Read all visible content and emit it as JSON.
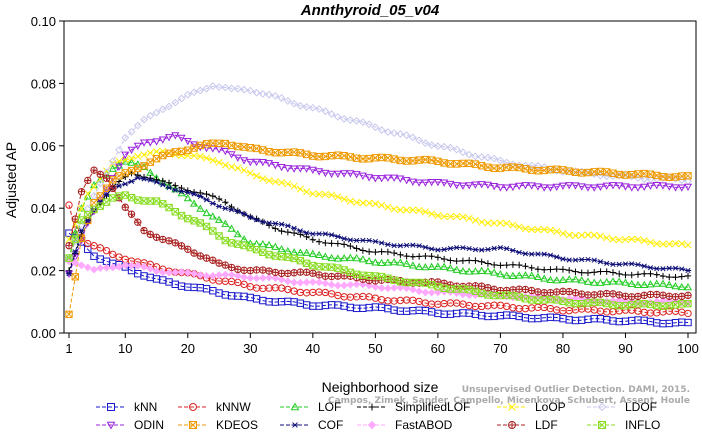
{
  "chart_data": {
    "type": "line",
    "title": "Annthyroid_05_v04",
    "xlabel": "Neighborhood size",
    "ylabel": "Adjusted AP",
    "xlim": [
      1,
      100
    ],
    "ylim": [
      0.0,
      0.1
    ],
    "xticks": [
      "1",
      "10",
      "20",
      "30",
      "40",
      "50",
      "60",
      "70",
      "80",
      "90",
      "100"
    ],
    "yticks": [
      "0.00",
      "0.02",
      "0.04",
      "0.06",
      "0.08",
      "0.10"
    ],
    "watermark": [
      "Unsupervised Outlier Detection. DAMI, 2015.",
      "Campos, Zimek, Sander, Campello, Micenkova, Schubert, Assent, Houle"
    ],
    "legend_position": "bottom",
    "series": [
      {
        "name": "kNN",
        "color": "#1a1acc",
        "marker": "square",
        "points": [
          [
            1,
            0.032
          ],
          [
            3,
            0.029
          ],
          [
            5,
            0.025
          ],
          [
            8,
            0.022
          ],
          [
            10,
            0.021
          ],
          [
            15,
            0.017
          ],
          [
            20,
            0.015
          ],
          [
            25,
            0.013
          ],
          [
            30,
            0.011
          ],
          [
            40,
            0.009
          ],
          [
            50,
            0.008
          ],
          [
            60,
            0.0065
          ],
          [
            70,
            0.0055
          ],
          [
            80,
            0.0045
          ],
          [
            90,
            0.004
          ],
          [
            100,
            0.003
          ]
        ]
      },
      {
        "name": "kNNW",
        "color": "#dd2222",
        "marker": "circle",
        "points": [
          [
            1,
            0.041
          ],
          [
            2,
            0.033
          ],
          [
            4,
            0.029
          ],
          [
            6,
            0.027
          ],
          [
            8,
            0.025
          ],
          [
            10,
            0.024
          ],
          [
            15,
            0.021
          ],
          [
            20,
            0.019
          ],
          [
            25,
            0.017
          ],
          [
            30,
            0.015
          ],
          [
            40,
            0.013
          ],
          [
            50,
            0.011
          ],
          [
            60,
            0.0095
          ],
          [
            70,
            0.0085
          ],
          [
            80,
            0.0075
          ],
          [
            90,
            0.007
          ],
          [
            100,
            0.0065
          ]
        ]
      },
      {
        "name": "LOF",
        "color": "#22cc22",
        "marker": "triangle-up",
        "points": [
          [
            1,
            0.024
          ],
          [
            3,
            0.04
          ],
          [
            5,
            0.047
          ],
          [
            8,
            0.053
          ],
          [
            10,
            0.055
          ],
          [
            13,
            0.053
          ],
          [
            15,
            0.05
          ],
          [
            20,
            0.043
          ],
          [
            25,
            0.036
          ],
          [
            30,
            0.029
          ],
          [
            40,
            0.025
          ],
          [
            50,
            0.023
          ],
          [
            60,
            0.021
          ],
          [
            70,
            0.019
          ],
          [
            80,
            0.017
          ],
          [
            90,
            0.016
          ],
          [
            100,
            0.015
          ]
        ]
      },
      {
        "name": "SimplifiedLOF",
        "color": "#000000",
        "marker": "plus",
        "points": [
          [
            1,
            0.02
          ],
          [
            3,
            0.031
          ],
          [
            5,
            0.039
          ],
          [
            8,
            0.047
          ],
          [
            11,
            0.051
          ],
          [
            14,
            0.05
          ],
          [
            18,
            0.047
          ],
          [
            22,
            0.045
          ],
          [
            26,
            0.042
          ],
          [
            30,
            0.037
          ],
          [
            35,
            0.033
          ],
          [
            40,
            0.03
          ],
          [
            50,
            0.026
          ],
          [
            60,
            0.024
          ],
          [
            70,
            0.022
          ],
          [
            80,
            0.02
          ],
          [
            90,
            0.019
          ],
          [
            100,
            0.018
          ]
        ]
      },
      {
        "name": "LoOP",
        "color": "#ffee00",
        "marker": "x",
        "points": [
          [
            1,
            0.03
          ],
          [
            4,
            0.045
          ],
          [
            8,
            0.054
          ],
          [
            12,
            0.057
          ],
          [
            16,
            0.058
          ],
          [
            20,
            0.057
          ],
          [
            25,
            0.055
          ],
          [
            30,
            0.051
          ],
          [
            40,
            0.045
          ],
          [
            50,
            0.041
          ],
          [
            60,
            0.038
          ],
          [
            70,
            0.035
          ],
          [
            80,
            0.032
          ],
          [
            90,
            0.03
          ],
          [
            100,
            0.028
          ]
        ]
      },
      {
        "name": "LDOF",
        "color": "#c8c8ee",
        "marker": "diamond",
        "points": [
          [
            1,
            0.024
          ],
          [
            4,
            0.04
          ],
          [
            8,
            0.055
          ],
          [
            10,
            0.063
          ],
          [
            13,
            0.068
          ],
          [
            16,
            0.072
          ],
          [
            20,
            0.076
          ],
          [
            24,
            0.0795
          ],
          [
            27,
            0.078
          ],
          [
            30,
            0.078
          ],
          [
            35,
            0.075
          ],
          [
            40,
            0.072
          ],
          [
            50,
            0.066
          ],
          [
            60,
            0.06
          ],
          [
            70,
            0.055
          ],
          [
            80,
            0.052
          ],
          [
            90,
            0.05
          ],
          [
            100,
            0.049
          ]
        ]
      },
      {
        "name": "ODIN",
        "color": "#9922dd",
        "marker": "triangle-down",
        "points": [
          [
            1,
            0.019
          ],
          [
            4,
            0.035
          ],
          [
            8,
            0.05
          ],
          [
            10,
            0.057
          ],
          [
            13,
            0.061
          ],
          [
            18,
            0.063
          ],
          [
            22,
            0.06
          ],
          [
            26,
            0.058
          ],
          [
            30,
            0.055
          ],
          [
            40,
            0.052
          ],
          [
            50,
            0.05
          ],
          [
            60,
            0.048
          ],
          [
            70,
            0.047
          ],
          [
            80,
            0.047
          ],
          [
            90,
            0.047
          ],
          [
            100,
            0.047
          ]
        ]
      },
      {
        "name": "KDEOS",
        "color": "#ee9900",
        "marker": "boxtimes",
        "points": [
          [
            1,
            0.006
          ],
          [
            3,
            0.03
          ],
          [
            5,
            0.042
          ],
          [
            8,
            0.049
          ],
          [
            11,
            0.052
          ],
          [
            14,
            0.055
          ],
          [
            18,
            0.058
          ],
          [
            22,
            0.06
          ],
          [
            26,
            0.061
          ],
          [
            30,
            0.059
          ],
          [
            40,
            0.057
          ],
          [
            50,
            0.056
          ],
          [
            60,
            0.055
          ],
          [
            70,
            0.053
          ],
          [
            80,
            0.052
          ],
          [
            90,
            0.051
          ],
          [
            100,
            0.05
          ]
        ]
      },
      {
        "name": "COF",
        "color": "#0d0d77",
        "marker": "asterisk",
        "points": [
          [
            1,
            0.019
          ],
          [
            3,
            0.033
          ],
          [
            5,
            0.04
          ],
          [
            8,
            0.046
          ],
          [
            10,
            0.048
          ],
          [
            12,
            0.05
          ],
          [
            15,
            0.048
          ],
          [
            20,
            0.045
          ],
          [
            25,
            0.041
          ],
          [
            30,
            0.037
          ],
          [
            40,
            0.032
          ],
          [
            50,
            0.029
          ],
          [
            60,
            0.027
          ],
          [
            70,
            0.027
          ],
          [
            80,
            0.024
          ],
          [
            90,
            0.022
          ],
          [
            100,
            0.02
          ]
        ]
      },
      {
        "name": "FastABOD",
        "color": "#ffaaff",
        "marker": "diamond-filled",
        "points": [
          [
            1,
            0.023
          ],
          [
            3,
            0.022
          ],
          [
            5,
            0.02
          ],
          [
            10,
            0.022
          ],
          [
            15,
            0.02
          ],
          [
            20,
            0.019
          ],
          [
            30,
            0.018
          ],
          [
            40,
            0.016
          ],
          [
            50,
            0.015
          ],
          [
            60,
            0.013
          ],
          [
            70,
            0.012
          ],
          [
            80,
            0.011
          ],
          [
            90,
            0.01
          ],
          [
            100,
            0.01
          ]
        ]
      },
      {
        "name": "LDF",
        "color": "#aa2222",
        "marker": "circle-plus",
        "points": [
          [
            1,
            0.028
          ],
          [
            3,
            0.045
          ],
          [
            5,
            0.052
          ],
          [
            7,
            0.05
          ],
          [
            10,
            0.04
          ],
          [
            13,
            0.033
          ],
          [
            16,
            0.03
          ],
          [
            20,
            0.027
          ],
          [
            25,
            0.022
          ],
          [
            30,
            0.02
          ],
          [
            40,
            0.019
          ],
          [
            50,
            0.017
          ],
          [
            60,
            0.016
          ],
          [
            70,
            0.014
          ],
          [
            80,
            0.013
          ],
          [
            90,
            0.012
          ],
          [
            100,
            0.012
          ]
        ]
      },
      {
        "name": "INFLO",
        "color": "#88dd22",
        "marker": "square-x",
        "points": [
          [
            1,
            0.024
          ],
          [
            3,
            0.036
          ],
          [
            5,
            0.04
          ],
          [
            8,
            0.043
          ],
          [
            10,
            0.044
          ],
          [
            12,
            0.043
          ],
          [
            15,
            0.042
          ],
          [
            18,
            0.039
          ],
          [
            22,
            0.035
          ],
          [
            26,
            0.03
          ],
          [
            30,
            0.027
          ],
          [
            40,
            0.022
          ],
          [
            50,
            0.018
          ],
          [
            60,
            0.015
          ],
          [
            70,
            0.012
          ],
          [
            80,
            0.01
          ],
          [
            90,
            0.009
          ],
          [
            100,
            0.009
          ]
        ]
      }
    ],
    "legend_rows": [
      [
        "kNN",
        "kNNW",
        "LOF",
        "SimplifiedLOF",
        "LoOP",
        "LDOF"
      ],
      [
        "ODIN",
        "KDEOS",
        "COF",
        "FastABOD",
        "LDF",
        "INFLO"
      ]
    ]
  }
}
